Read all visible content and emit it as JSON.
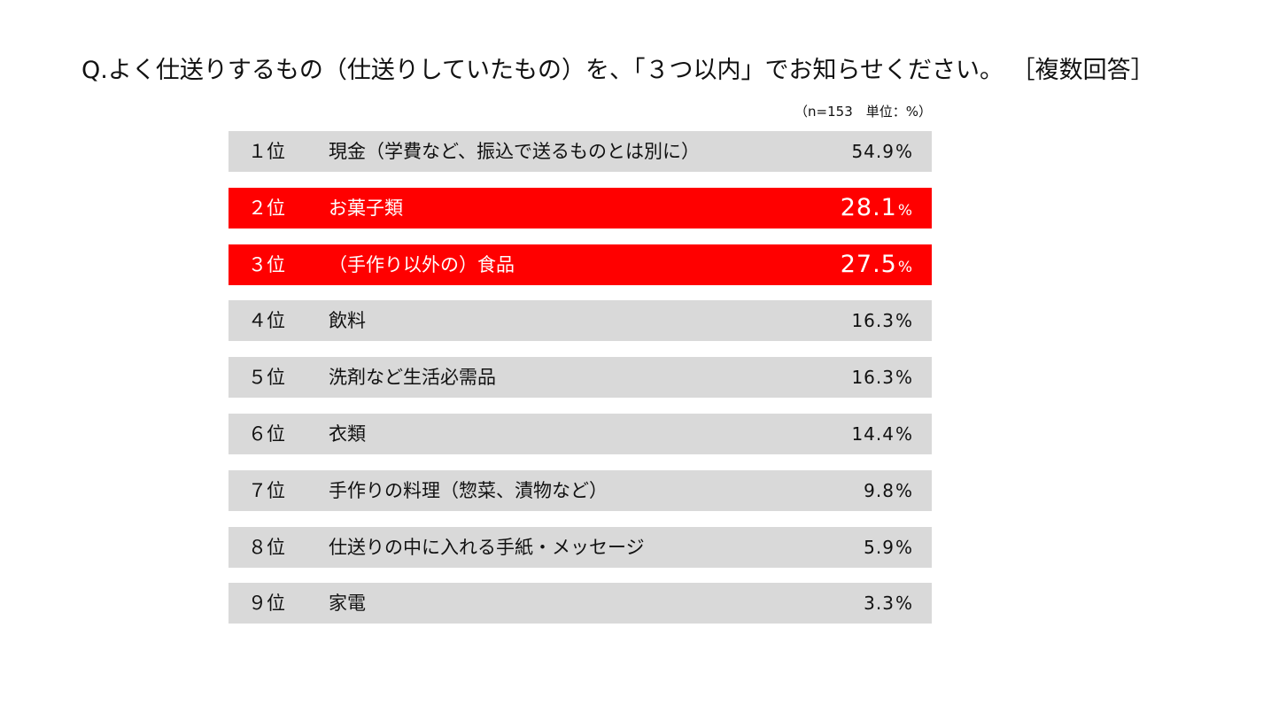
{
  "chart_data": {
    "type": "table",
    "title": "Q.よく仕送りするもの（仕送りしていたもの）を、「３つ以内」でお知らせください。 ［複数回答］",
    "note": "（n=153　単位：%）",
    "unit_symbol": "%",
    "colors": {
      "row_background": "#d9d9d9",
      "highlight_background": "#ff0000",
      "highlight_text": "#ffffff",
      "text": "#111111"
    },
    "rows": [
      {
        "rank": "１位",
        "item": "現金（学費など、振込で送るものとは別に）",
        "value": "54.9",
        "highlight": false
      },
      {
        "rank": "２位",
        "item": "お菓子類",
        "value": "28.1",
        "highlight": true
      },
      {
        "rank": "３位",
        "item": "（手作り以外の）食品",
        "value": "27.5",
        "highlight": true
      },
      {
        "rank": "４位",
        "item": "飲料",
        "value": "16.3",
        "highlight": false
      },
      {
        "rank": "５位",
        "item": "洗剤など生活必需品",
        "value": "16.3",
        "highlight": false
      },
      {
        "rank": "６位",
        "item": "衣類",
        "value": "14.4",
        "highlight": false
      },
      {
        "rank": "７位",
        "item": "手作りの料理（惣菜、漬物など）",
        "value": "9.8",
        "highlight": false
      },
      {
        "rank": "８位",
        "item": "仕送りの中に入れる手紙・メッセージ",
        "value": "5.9",
        "highlight": false
      },
      {
        "rank": "９位",
        "item": "家電",
        "value": "3.3",
        "highlight": false
      }
    ]
  }
}
